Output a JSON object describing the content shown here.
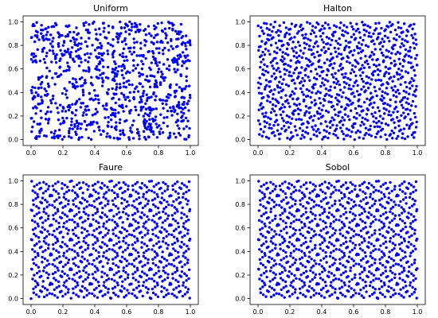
{
  "figure": {
    "background": "#ffffff",
    "point_color": "#0000ff"
  },
  "chart_data": [
    {
      "type": "scatter",
      "title": "Uniform",
      "generator": "uniform",
      "n_points": 1000,
      "xlim": [
        -0.05,
        1.05
      ],
      "ylim": [
        -0.05,
        1.05
      ],
      "xticks": [
        "0.0",
        "0.2",
        "0.4",
        "0.6",
        "0.8",
        "1.0"
      ],
      "yticks": [
        "0.0",
        "0.2",
        "0.4",
        "0.6",
        "0.8",
        "1.0"
      ],
      "xlabel": "",
      "ylabel": "",
      "grid": false,
      "color": "#0000ff"
    },
    {
      "type": "scatter",
      "title": "Halton",
      "generator": "halton",
      "n_points": 1000,
      "xlim": [
        -0.05,
        1.05
      ],
      "ylim": [
        -0.05,
        1.05
      ],
      "xticks": [
        "0.0",
        "0.2",
        "0.4",
        "0.6",
        "0.8",
        "1.0"
      ],
      "yticks": [
        "0.0",
        "0.2",
        "0.4",
        "0.6",
        "0.8",
        "1.0"
      ],
      "xlabel": "",
      "ylabel": "",
      "grid": false,
      "color": "#0000ff"
    },
    {
      "type": "scatter",
      "title": "Faure",
      "generator": "faure",
      "n_points": 1000,
      "xlim": [
        -0.05,
        1.05
      ],
      "ylim": [
        -0.05,
        1.05
      ],
      "xticks": [
        "0.0",
        "0.2",
        "0.4",
        "0.6",
        "0.8",
        "1.0"
      ],
      "yticks": [
        "0.0",
        "0.2",
        "0.4",
        "0.6",
        "0.8",
        "1.0"
      ],
      "xlabel": "",
      "ylabel": "",
      "grid": false,
      "color": "#0000ff"
    },
    {
      "type": "scatter",
      "title": "Sobol",
      "generator": "sobol",
      "n_points": 1000,
      "xlim": [
        -0.05,
        1.05
      ],
      "ylim": [
        -0.05,
        1.05
      ],
      "xticks": [
        "0.0",
        "0.2",
        "0.4",
        "0.6",
        "0.8",
        "1.0"
      ],
      "yticks": [
        "0.0",
        "0.2",
        "0.4",
        "0.6",
        "0.8",
        "1.0"
      ],
      "xlabel": "",
      "ylabel": "",
      "grid": false,
      "color": "#0000ff"
    }
  ]
}
